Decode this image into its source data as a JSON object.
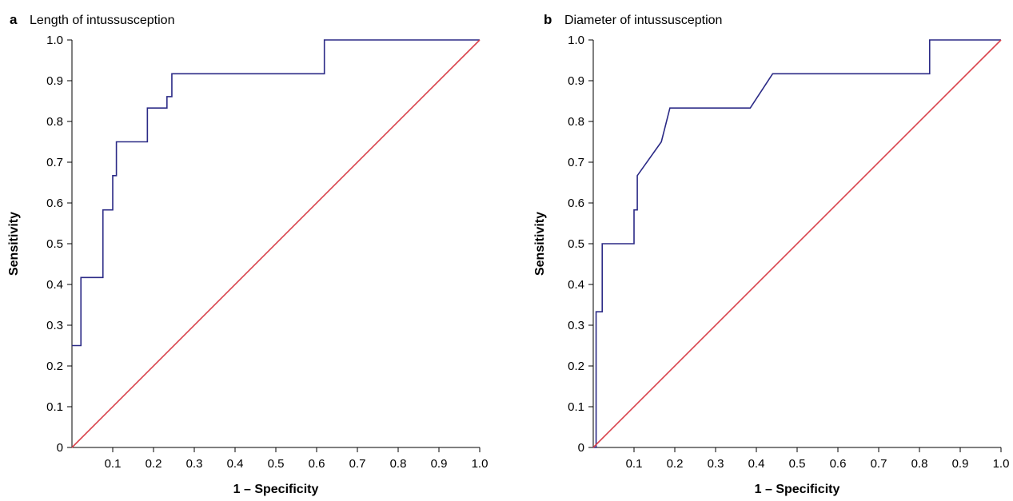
{
  "chart_data": [
    {
      "type": "line",
      "panel_letter": "a",
      "title": "Length of intussusception",
      "xlabel": "1 – Specificity",
      "ylabel": "Sensitivity",
      "xlim": [
        0,
        1
      ],
      "ylim": [
        0,
        1
      ],
      "x_ticks": [
        "0.1",
        "0.2",
        "0.3",
        "0.4",
        "0.5",
        "0.6",
        "0.7",
        "0.8",
        "0.9",
        "1.0"
      ],
      "y_ticks": [
        "0",
        "0.1",
        "0.2",
        "0.3",
        "0.4",
        "0.5",
        "0.6",
        "0.7",
        "0.8",
        "0.9",
        "1.0"
      ],
      "grid": false,
      "series": [
        {
          "color": "#2b2a86",
          "x": [
            0,
            0.022,
            0.022,
            0.076,
            0.076,
            0.1,
            0.1,
            0.109,
            0.109,
            0.185,
            0.185,
            0.233,
            0.233,
            0.245,
            0.245,
            0.606,
            0.619,
            0.619,
            1.0
          ],
          "y": [
            0.25,
            0.25,
            0.417,
            0.417,
            0.583,
            0.583,
            0.667,
            0.667,
            0.75,
            0.75,
            0.833,
            0.833,
            0.861,
            0.861,
            0.917,
            0.917,
            0.917,
            1.0,
            1.0
          ]
        },
        {
          "color": "#d9444d",
          "x": [
            0,
            1
          ],
          "y": [
            0,
            1
          ]
        }
      ]
    },
    {
      "type": "line",
      "panel_letter": "b",
      "title": "Diameter of intussusception",
      "xlabel": "1 – Specificity",
      "ylabel": "Sensitivity",
      "xlim": [
        0,
        1
      ],
      "ylim": [
        0,
        1
      ],
      "x_ticks": [
        "0.1",
        "0.2",
        "0.3",
        "0.4",
        "0.5",
        "0.6",
        "0.7",
        "0.8",
        "0.9",
        "1.0"
      ],
      "y_ticks": [
        "0",
        "0.1",
        "0.2",
        "0.3",
        "0.4",
        "0.5",
        "0.6",
        "0.7",
        "0.8",
        "0.9",
        "1.0"
      ],
      "grid": false,
      "series": [
        {
          "color": "#2b2a86",
          "x": [
            0,
            0.007,
            0.007,
            0.022,
            0.022,
            0.1,
            0.1,
            0.108,
            0.108,
            0.167,
            0.188,
            0.385,
            0.44,
            0.815,
            0.825,
            0.825,
            1.0
          ],
          "y": [
            0,
            0,
            0.333,
            0.333,
            0.5,
            0.5,
            0.583,
            0.583,
            0.667,
            0.75,
            0.833,
            0.833,
            0.917,
            0.917,
            0.917,
            1.0,
            1.0
          ]
        },
        {
          "color": "#d9444d",
          "x": [
            0,
            1
          ],
          "y": [
            0,
            1
          ]
        }
      ]
    }
  ]
}
